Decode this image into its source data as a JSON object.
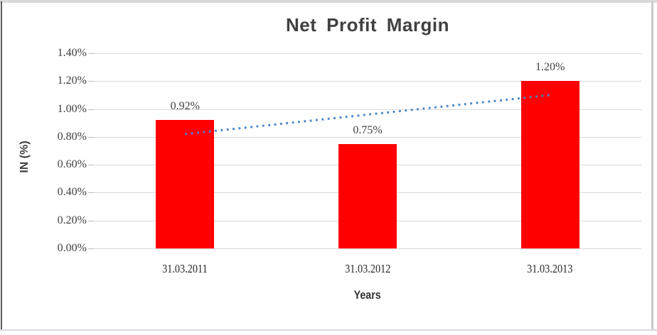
{
  "chart_data": {
    "type": "bar",
    "title": "Net Profit Margin",
    "xlabel": "Years",
    "ylabel": "IN (%)",
    "categories": [
      "31.03.2011",
      "31.03.2012",
      "31.03.2013"
    ],
    "values": [
      0.92,
      0.75,
      1.2
    ],
    "data_labels": [
      "0.92%",
      "0.75%",
      "1.20%"
    ],
    "ylim": [
      0,
      1.4
    ],
    "ytick_step": 0.2,
    "ytick_labels": [
      "0.00%",
      "0.20%",
      "0.40%",
      "0.60%",
      "0.80%",
      "1.00%",
      "1.20%",
      "1.40%"
    ],
    "grid": "horizontal",
    "legend": "none",
    "trendline": {
      "type": "linear",
      "style": "dotted",
      "start_value": 0.82,
      "end_value": 1.1
    },
    "colors": {
      "bar": "#FF0000",
      "trendline": "#4A86C8",
      "gridline": "#D9D9D9",
      "tick_mark": "#BFBFBF",
      "title_text": "#404040",
      "label_text": "#3F3F3F"
    }
  }
}
